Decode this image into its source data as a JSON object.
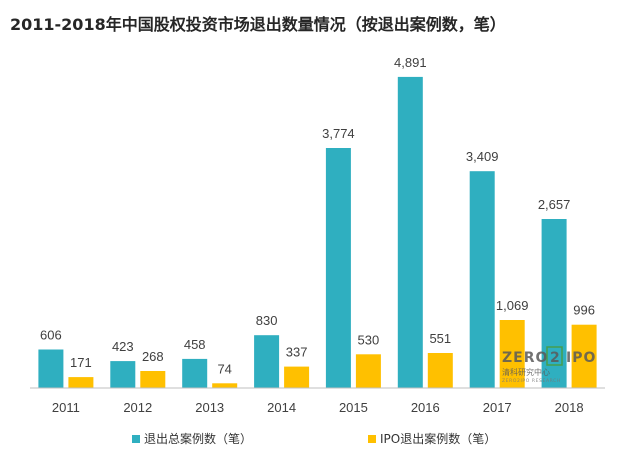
{
  "chart_data": {
    "type": "bar",
    "title": "2011-2018年中国股权投资市场退出数量情况（按退出案例数，笔）",
    "categories": [
      "2011",
      "2012",
      "2013",
      "2014",
      "2015",
      "2016",
      "2017",
      "2018"
    ],
    "series": [
      {
        "name": "退出总案例数（笔）",
        "color": "#2FAFC0",
        "values": [
          606,
          423,
          458,
          830,
          3774,
          4891,
          3409,
          2657
        ],
        "labels": [
          "606",
          "423",
          "458",
          "830",
          "3,774",
          "4,891",
          "3,409",
          "2,657"
        ]
      },
      {
        "name": "IPO退出案例数（笔）",
        "color": "#FFC000",
        "values": [
          171,
          268,
          74,
          337,
          530,
          551,
          1069,
          996
        ],
        "labels": [
          "171",
          "268",
          "74",
          "337",
          "530",
          "551",
          "1,069",
          "996"
        ]
      }
    ],
    "ylim": [
      0,
      5000
    ],
    "grid": false,
    "legend_position": "bottom"
  },
  "watermark": {
    "brand_left": "ZERO",
    "brand_mid": "2",
    "brand_right": "IPO",
    "subtitle": "清科研究中心",
    "tagline": "ZERO2IPO RESEARCH"
  }
}
